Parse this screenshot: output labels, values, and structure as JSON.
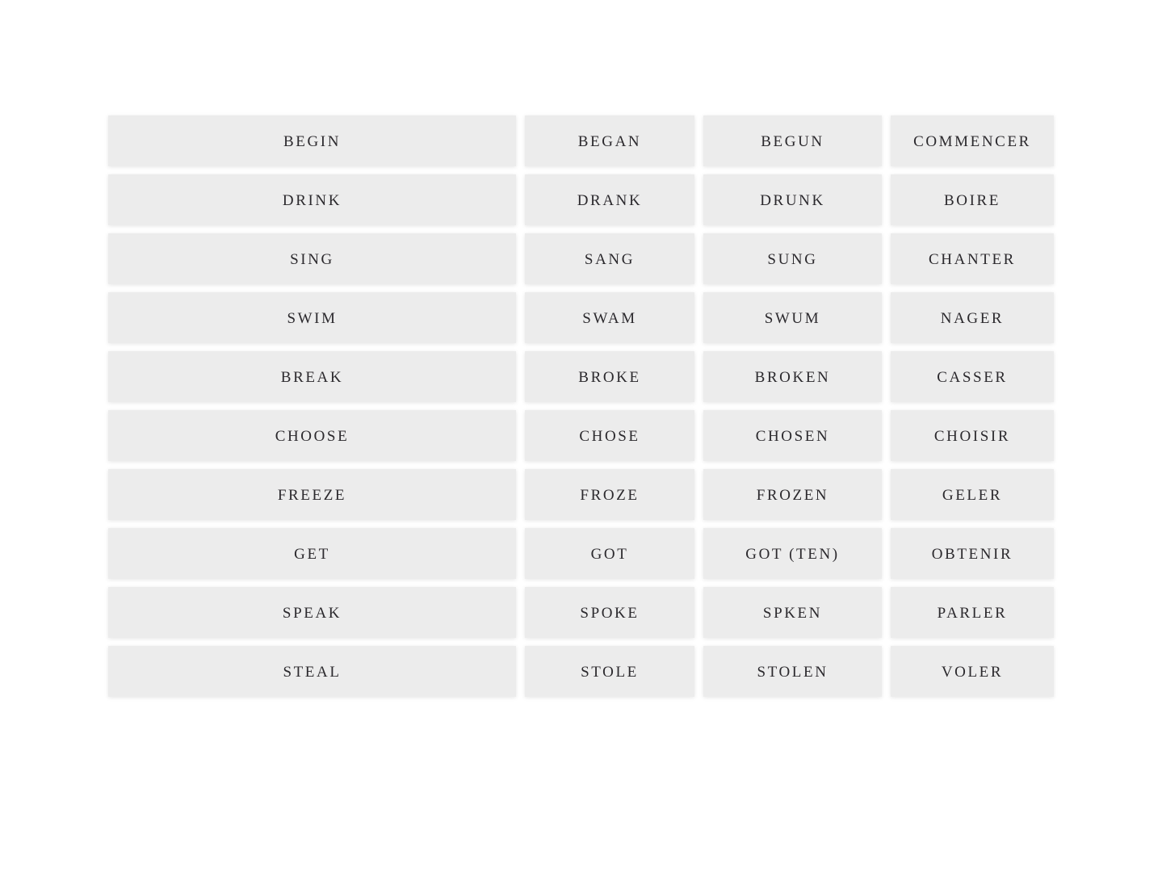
{
  "colors": {
    "page_bg": "#ffffff",
    "card_bg": "#ececec",
    "text_color": "#2b292d"
  },
  "table": {
    "rows": [
      [
        "BEGIN",
        "BEGAN",
        "BEGUN",
        "COMMENCER"
      ],
      [
        "DRINK",
        "DRANK",
        "DRUNK",
        "BOIRE"
      ],
      [
        "SING",
        "SANG",
        "SUNG",
        "CHANTER"
      ],
      [
        "SWIM",
        "SWAM",
        "SWUM",
        "NAGER"
      ],
      [
        "BREAK",
        "BROKE",
        "BROKEN",
        "CASSER"
      ],
      [
        "CHOOSE",
        "CHOSE",
        "CHOSEN",
        "CHOISIR"
      ],
      [
        "FREEZE",
        "FROZE",
        "FROZEN",
        "GELER"
      ],
      [
        "GET",
        "GOT",
        "GOT (TEN)",
        "OBTENIR"
      ],
      [
        "SPEAK",
        "SPOKE",
        "SPKEN",
        "PARLER"
      ],
      [
        "STEAL",
        "STOLE",
        "STOLEN",
        "VOLER"
      ]
    ]
  }
}
